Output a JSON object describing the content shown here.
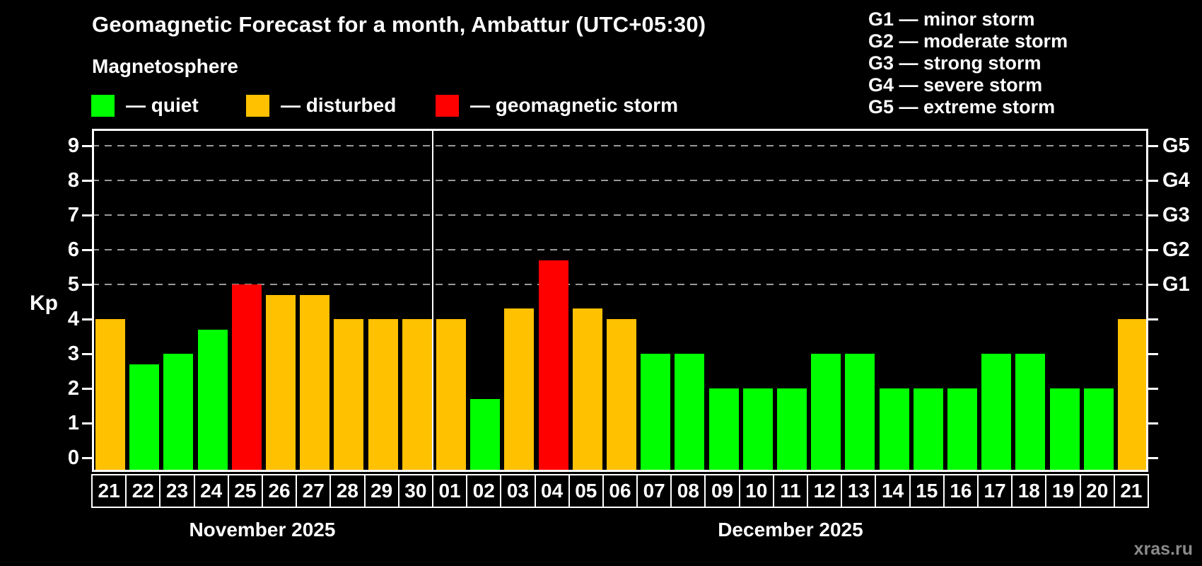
{
  "title": "Geomagnetic Forecast for a month, Ambattur (UTC+05:30)",
  "subtitle": "Magnetosphere",
  "legend_items": [
    {
      "status": "quiet",
      "label": "— quiet",
      "color": "#00ff00"
    },
    {
      "status": "disturbed",
      "label": "— disturbed",
      "color": "#ffc100"
    },
    {
      "status": "storm",
      "label": "— geomagnetic storm",
      "color": "#ff0000"
    }
  ],
  "storm_scale": [
    "G1 — minor storm",
    "G2 — moderate storm",
    "G3 — strong storm",
    "G4 — severe storm",
    "G5 — extreme storm"
  ],
  "watermark": "xras.ru",
  "chart_data": {
    "type": "bar",
    "title": "Geomagnetic Forecast for a month, Ambattur (UTC+05:30)",
    "ylabel": "Kp",
    "ylim": [
      0,
      9.45
    ],
    "y_ticks": [
      0,
      1,
      2,
      3,
      4,
      5,
      6,
      7,
      8,
      9
    ],
    "grid_levels": [
      5,
      6,
      7,
      8,
      9
    ],
    "grid": true,
    "legend_position": "top",
    "right_axis_labels": [
      {
        "label": "G1",
        "kp": 5
      },
      {
        "label": "G2",
        "kp": 6
      },
      {
        "label": "G3",
        "kp": 7
      },
      {
        "label": "G4",
        "kp": 8
      },
      {
        "label": "G5",
        "kp": 9
      }
    ],
    "status_colors": {
      "quiet": "#00ff00",
      "disturbed": "#ffc100",
      "storm": "#ff0000"
    },
    "months": [
      {
        "label": "November 2025",
        "points": [
          {
            "day": "21",
            "kp": 4.0,
            "status": "disturbed"
          },
          {
            "day": "22",
            "kp": 2.7,
            "status": "quiet"
          },
          {
            "day": "23",
            "kp": 3.0,
            "status": "quiet"
          },
          {
            "day": "24",
            "kp": 3.7,
            "status": "quiet"
          },
          {
            "day": "25",
            "kp": 5.0,
            "status": "storm"
          },
          {
            "day": "26",
            "kp": 4.7,
            "status": "disturbed"
          },
          {
            "day": "27",
            "kp": 4.7,
            "status": "disturbed"
          },
          {
            "day": "28",
            "kp": 4.0,
            "status": "disturbed"
          },
          {
            "day": "29",
            "kp": 4.0,
            "status": "disturbed"
          },
          {
            "day": "30",
            "kp": 4.0,
            "status": "disturbed"
          }
        ]
      },
      {
        "label": "December 2025",
        "points": [
          {
            "day": "01",
            "kp": 4.0,
            "status": "disturbed"
          },
          {
            "day": "02",
            "kp": 1.7,
            "status": "quiet"
          },
          {
            "day": "03",
            "kp": 4.3,
            "status": "disturbed"
          },
          {
            "day": "04",
            "kp": 5.7,
            "status": "storm"
          },
          {
            "day": "05",
            "kp": 4.3,
            "status": "disturbed"
          },
          {
            "day": "06",
            "kp": 4.0,
            "status": "disturbed"
          },
          {
            "day": "07",
            "kp": 3.0,
            "status": "quiet"
          },
          {
            "day": "08",
            "kp": 3.0,
            "status": "quiet"
          },
          {
            "day": "09",
            "kp": 2.0,
            "status": "quiet"
          },
          {
            "day": "10",
            "kp": 2.0,
            "status": "quiet"
          },
          {
            "day": "11",
            "kp": 2.0,
            "status": "quiet"
          },
          {
            "day": "12",
            "kp": 3.0,
            "status": "quiet"
          },
          {
            "day": "13",
            "kp": 3.0,
            "status": "quiet"
          },
          {
            "day": "14",
            "kp": 2.0,
            "status": "quiet"
          },
          {
            "day": "15",
            "kp": 2.0,
            "status": "quiet"
          },
          {
            "day": "16",
            "kp": 2.0,
            "status": "quiet"
          },
          {
            "day": "17",
            "kp": 3.0,
            "status": "quiet"
          },
          {
            "day": "18",
            "kp": 3.0,
            "status": "quiet"
          },
          {
            "day": "19",
            "kp": 2.0,
            "status": "quiet"
          },
          {
            "day": "20",
            "kp": 2.0,
            "status": "quiet"
          },
          {
            "day": "21",
            "kp": 4.0,
            "status": "disturbed"
          }
        ]
      }
    ]
  }
}
